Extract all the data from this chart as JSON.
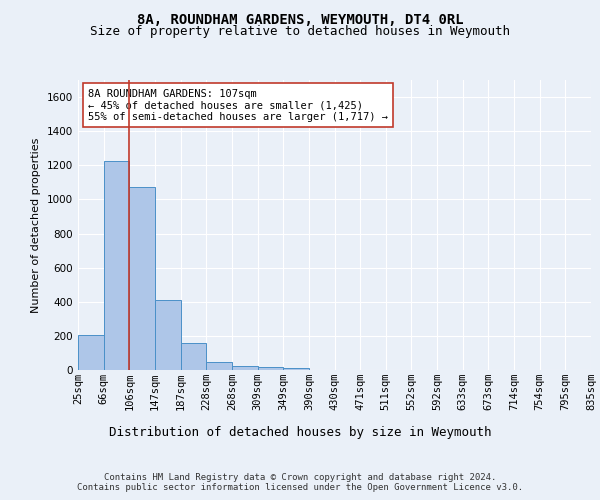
{
  "title1": "8A, ROUNDHAM GARDENS, WEYMOUTH, DT4 0RL",
  "title2": "Size of property relative to detached houses in Weymouth",
  "xlabel": "Distribution of detached houses by size in Weymouth",
  "ylabel": "Number of detached properties",
  "bar_values": [
    205,
    1225,
    1075,
    410,
    160,
    45,
    25,
    15,
    12,
    0,
    0,
    0,
    0,
    0,
    0,
    0,
    0,
    0,
    0,
    0
  ],
  "bin_labels": [
    "25sqm",
    "66sqm",
    "106sqm",
    "147sqm",
    "187sqm",
    "228sqm",
    "268sqm",
    "309sqm",
    "349sqm",
    "390sqm",
    "430sqm",
    "471sqm",
    "511sqm",
    "552sqm",
    "592sqm",
    "633sqm",
    "673sqm",
    "714sqm",
    "754sqm",
    "795sqm",
    "835sqm"
  ],
  "bar_color": "#aec6e8",
  "bar_edge_color": "#4a90c8",
  "vline_x": 2,
  "vline_color": "#c0392b",
  "annotation_text": "8A ROUNDHAM GARDENS: 107sqm\n← 45% of detached houses are smaller (1,425)\n55% of semi-detached houses are larger (1,717) →",
  "annotation_box_color": "white",
  "annotation_box_edge": "#c0392b",
  "ylim": [
    0,
    1700
  ],
  "yticks": [
    0,
    200,
    400,
    600,
    800,
    1000,
    1200,
    1400,
    1600
  ],
  "footnote": "Contains HM Land Registry data © Crown copyright and database right 2024.\nContains public sector information licensed under the Open Government Licence v3.0.",
  "bg_color": "#eaf0f8",
  "plot_bg_color": "#eaf0f8",
  "grid_color": "white",
  "title1_fontsize": 10,
  "title2_fontsize": 9,
  "xlabel_fontsize": 9,
  "ylabel_fontsize": 8,
  "tick_fontsize": 7.5,
  "annotation_fontsize": 7.5,
  "footnote_fontsize": 6.5
}
